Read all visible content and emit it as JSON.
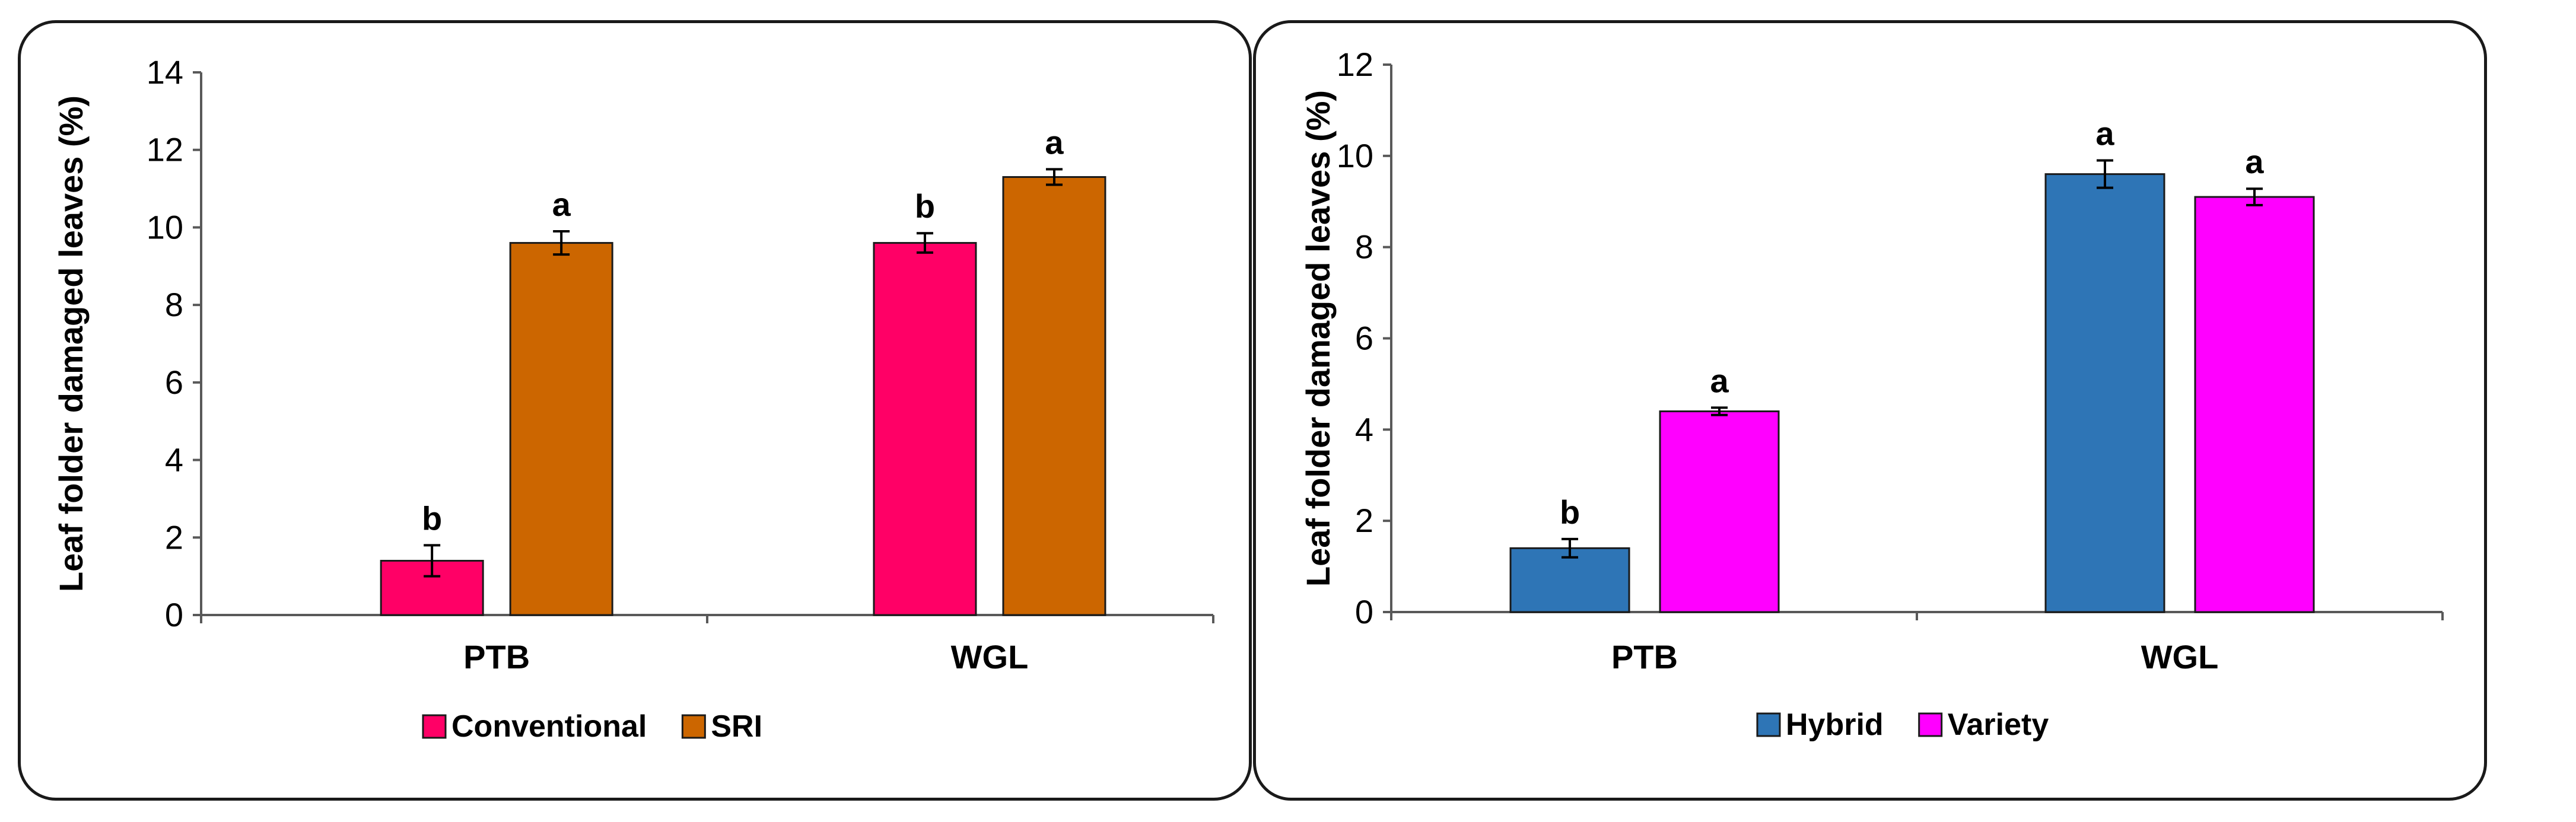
{
  "chart_data": [
    {
      "type": "bar",
      "title": "",
      "xlabel": "",
      "ylabel": "Leaf folder damaged leaves (%)",
      "ylim": [
        0,
        14
      ],
      "yticks": [
        0,
        2,
        4,
        6,
        8,
        10,
        12,
        14
      ],
      "categories": [
        "PTB",
        "WGL"
      ],
      "legend_position": "bottom",
      "series": [
        {
          "name": "Conventional",
          "color": "#FF0066",
          "values": [
            1.4,
            9.6
          ],
          "errors": [
            0.4,
            0.25
          ],
          "labels": [
            "b",
            "b"
          ]
        },
        {
          "name": "SRI",
          "color": "#CC6600",
          "values": [
            9.6,
            11.3
          ],
          "errors": [
            0.3,
            0.2
          ],
          "labels": [
            "a",
            "a"
          ]
        }
      ]
    },
    {
      "type": "bar",
      "title": "",
      "xlabel": "",
      "ylabel": "Leaf folder damaged leaves (%)",
      "ylim": [
        0,
        12
      ],
      "yticks": [
        0,
        2,
        4,
        6,
        8,
        10,
        12
      ],
      "categories": [
        "PTB",
        "WGL"
      ],
      "legend_position": "bottom",
      "series": [
        {
          "name": "Hybrid",
          "color": "#2E75B6",
          "values": [
            1.4,
            9.6
          ],
          "errors": [
            0.2,
            0.3
          ],
          "labels": [
            "b",
            "a"
          ]
        },
        {
          "name": "Variety",
          "color": "#FF00FF",
          "values": [
            4.4,
            9.1
          ],
          "errors": [
            0.08,
            0.18
          ],
          "labels": [
            "a",
            "a"
          ]
        }
      ]
    }
  ]
}
